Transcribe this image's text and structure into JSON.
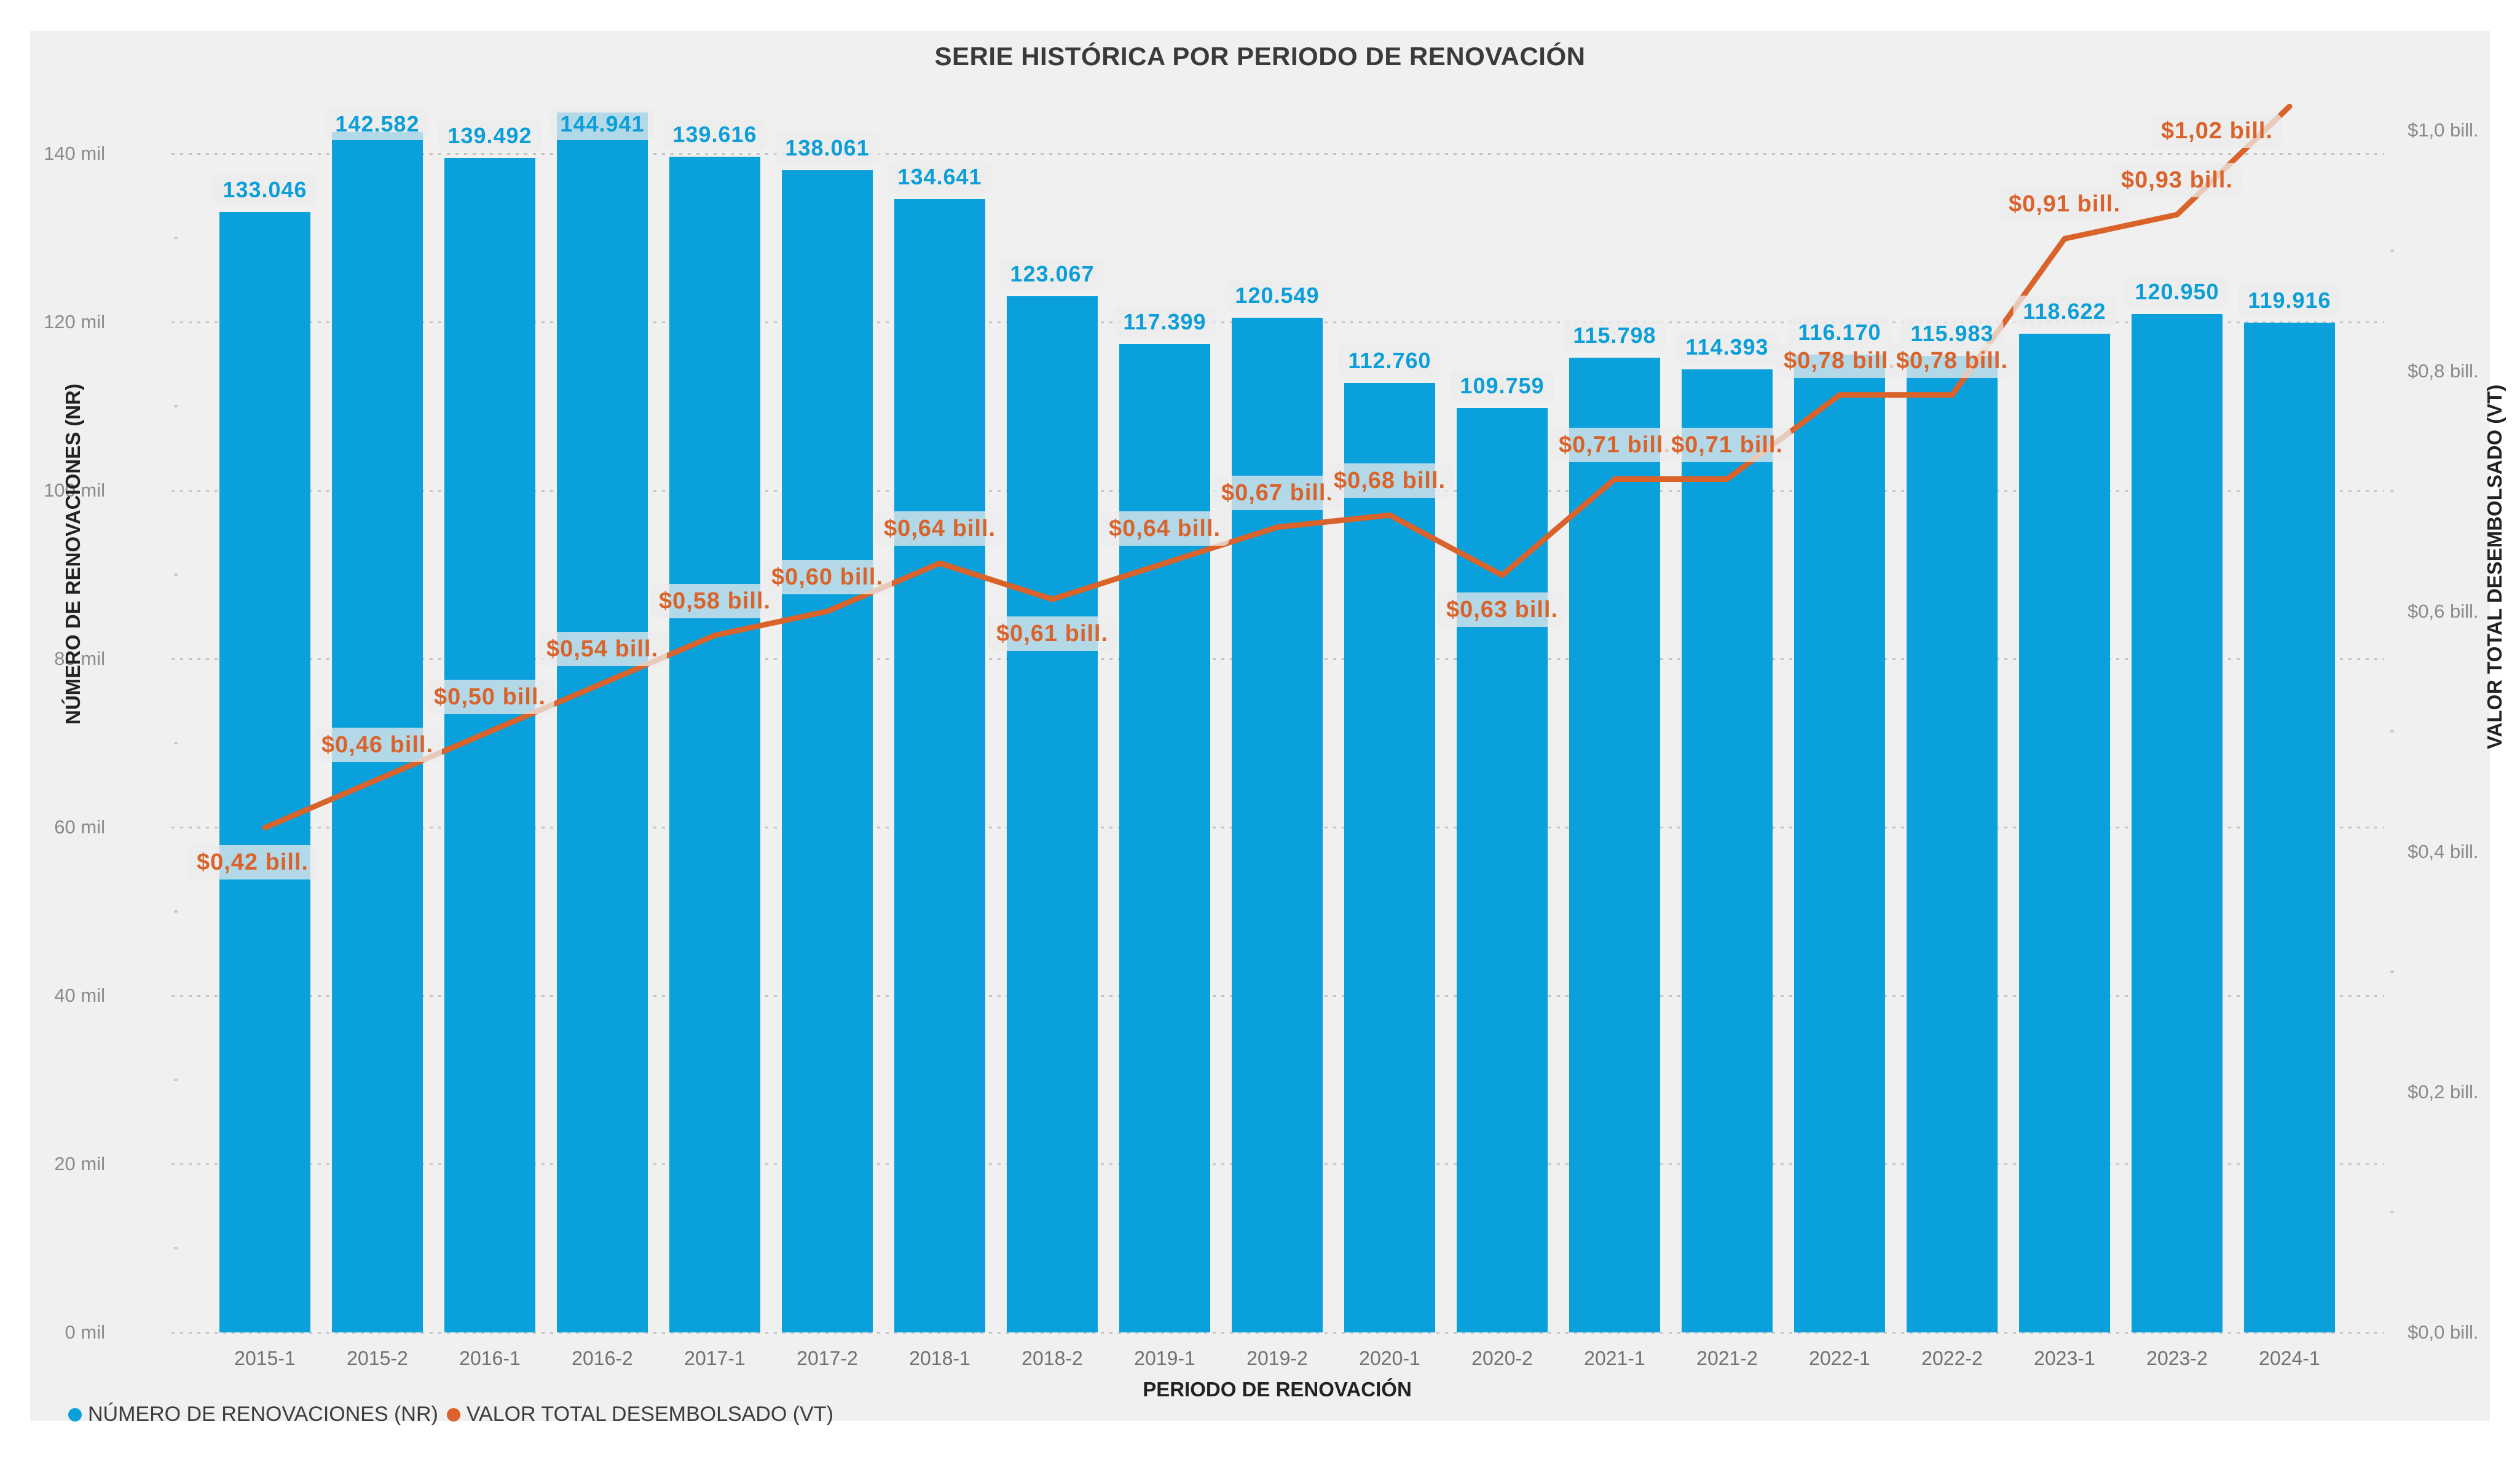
{
  "title": "SERIE HISTÓRICA POR PERIODO DE RENOVACIÓN",
  "colors": {
    "bar": "#0AA0DB",
    "bar_label_text": "#0B9ED8",
    "line": "#D9632B",
    "line_label_text": "#D9632B",
    "card_background": "#F0F0F0",
    "page_background": "#FFFFFF",
    "gridline": "#C4C4C4",
    "tick_text": "#8A8A8A",
    "title_text": "#3A3A3A",
    "axis_title_text": "#222222",
    "legend_text": "#3C3C3C"
  },
  "chart_data": {
    "type": "combo_bar_line",
    "title": "SERIE HISTÓRICA POR PERIODO DE RENOVACIÓN",
    "categories": [
      "2015-1",
      "2015-2",
      "2016-1",
      "2016-2",
      "2017-1",
      "2017-2",
      "2018-1",
      "2018-2",
      "2019-1",
      "2019-2",
      "2020-1",
      "2020-2",
      "2021-1",
      "2021-2",
      "2022-1",
      "2022-2",
      "2023-1",
      "2023-2",
      "2024-1"
    ],
    "series": [
      {
        "name": "NÚMERO DE RENOVACIONES (NR)",
        "type": "bar",
        "axis": "left",
        "values": [
          133046,
          142582,
          139492,
          144941,
          139616,
          138061,
          134641,
          123067,
          117399,
          120549,
          112760,
          109759,
          115798,
          114393,
          116170,
          115983,
          118622,
          120950,
          119916
        ],
        "labels": [
          "133.046",
          "142.582",
          "139.492",
          "144.941",
          "139.616",
          "138.061",
          "134.641",
          "123.067",
          "117.399",
          "120.549",
          "112.760",
          "109.759",
          "115.798",
          "114.393",
          "116.170",
          "115.983",
          "118.622",
          "120.950",
          "119.916"
        ]
      },
      {
        "name": "VALOR TOTAL DESEMBOLSADO (VT)",
        "type": "line",
        "axis": "right",
        "values": [
          0.42,
          0.46,
          0.5,
          0.54,
          0.58,
          0.6,
          0.64,
          0.61,
          0.64,
          0.67,
          0.68,
          0.63,
          0.71,
          0.71,
          0.78,
          0.78,
          0.91,
          0.93,
          1.02
        ],
        "labels": [
          "$0,42 bill.",
          "$0,46 bill.",
          "$0,50 bill.",
          "$0,54 bill.",
          "$0,58 bill.",
          "$0,60 bill.",
          "$0,64 bill.",
          "$0,61 bill.",
          "$0,64 bill.",
          "$0,67 bill.",
          "$0,68 bill.",
          "$0,63 bill.",
          "$0,71 bill.",
          "$0,71 bill.",
          "$0,78 bill.",
          "$0,78 bill.",
          "$0,91 bill.",
          "$0,93 bill.",
          "$1,02 bill."
        ]
      }
    ],
    "x_axis": {
      "title": "PERIODO DE RENOVACIÓN"
    },
    "left_axis": {
      "title": "NÚMERO DE RENOVACIONES (NR)",
      "tick_values": [
        0,
        20000,
        40000,
        60000,
        80000,
        100000,
        120000,
        140000
      ],
      "tick_labels": [
        "0 mil",
        "20 mil",
        "40 mil",
        "60 mil",
        "80 mil",
        "100 mil",
        "120 mil",
        "140 mil"
      ],
      "range": [
        0,
        146000
      ]
    },
    "right_axis": {
      "title": "VALOR TOTAL DESEMBOLSADO (VT)",
      "tick_values": [
        0.0,
        0.2,
        0.4,
        0.6,
        0.8,
        1.0
      ],
      "tick_labels": [
        "$0,0 bill.",
        "$0,2 bill.",
        "$0,4 bill.",
        "$0,6 bill.",
        "$0,8 bill.",
        "$1,0 bill."
      ],
      "range": [
        0,
        1.0227
      ]
    },
    "grid": "dotted horizontal, left-axis intervals",
    "legend_position": "bottom-left",
    "legend": [
      {
        "label": "NÚMERO DE RENOVACIONES (NR)",
        "color": "#0AA0DB"
      },
      {
        "label": "VALOR TOTAL DESEMBOLSADO (VT)",
        "color": "#D9632B"
      }
    ]
  }
}
